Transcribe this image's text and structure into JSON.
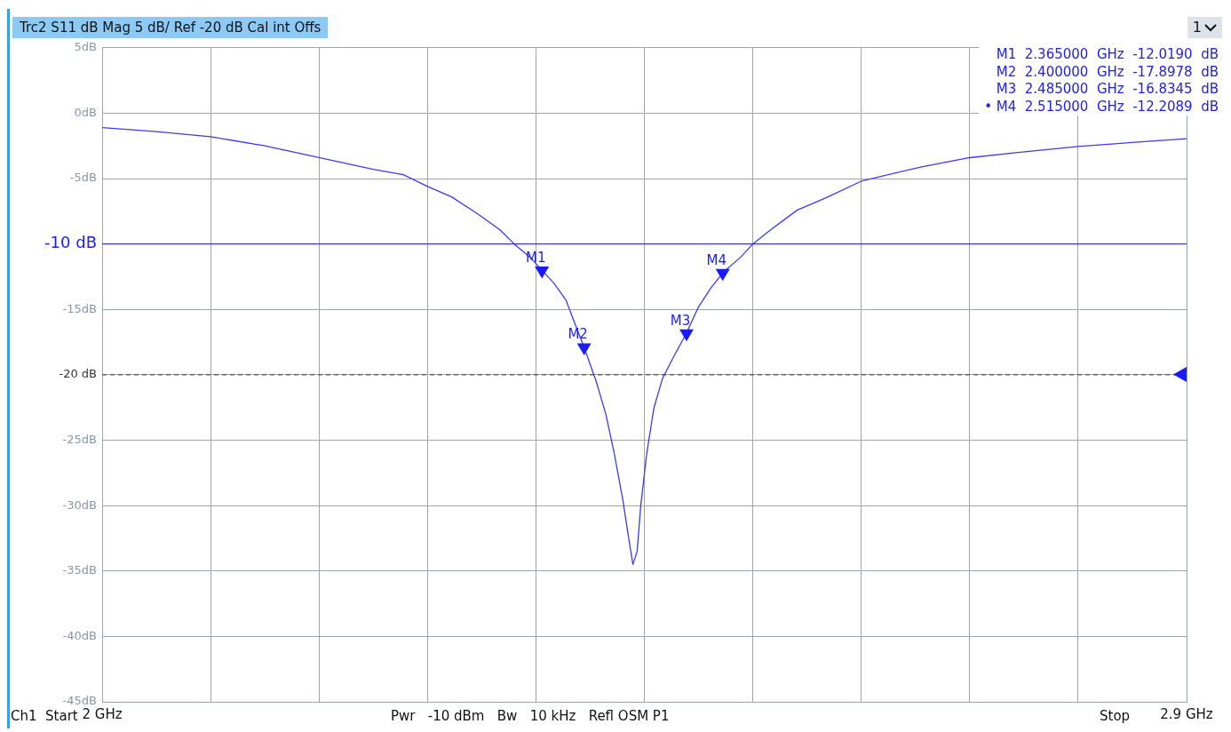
{
  "chart_data": {
    "type": "line",
    "title": "Trc2 S11 dB Mag 5 dB/ Ref -20 dB Cal int Offs",
    "x": [
      2.0,
      2.045,
      2.09,
      2.135,
      2.18,
      2.225,
      2.25,
      2.27,
      2.29,
      2.31,
      2.33,
      2.342,
      2.355,
      2.365,
      2.375,
      2.385,
      2.392,
      2.4,
      2.41,
      2.418,
      2.425,
      2.432,
      2.437,
      2.4405,
      2.444,
      2.447,
      2.452,
      2.458,
      2.465,
      2.475,
      2.485,
      2.495,
      2.505,
      2.515,
      2.53,
      2.54,
      2.555,
      2.577,
      2.6,
      2.63,
      2.68,
      2.72,
      2.76,
      2.81,
      2.86,
      2.9
    ],
    "series": [
      {
        "color": "#3a3af5",
        "values": [
          -1.1,
          -1.4,
          -1.8,
          -2.5,
          -3.4,
          -4.3,
          -4.7,
          -5.6,
          -6.4,
          -7.6,
          -8.9,
          -10.0,
          -11.0,
          -12.0,
          -13.0,
          -14.3,
          -16.0,
          -17.9,
          -20.5,
          -23.0,
          -26.0,
          -29.5,
          -32.5,
          -34.5,
          -33.5,
          -30.0,
          -26.0,
          -22.5,
          -20.3,
          -18.5,
          -16.8,
          -14.8,
          -13.4,
          -12.2,
          -11.0,
          -10.0,
          -8.9,
          -7.4,
          -6.5,
          -5.2,
          -4.1,
          -3.4,
          -3.0,
          -2.55,
          -2.2,
          -1.95
        ]
      }
    ],
    "xlim": [
      2.0,
      2.9
    ],
    "xticks": [
      {
        "value": 2.0,
        "label": "2 GHz"
      },
      {
        "value": 2.09,
        "label": null
      },
      {
        "value": 2.18,
        "label": null
      },
      {
        "value": 2.27,
        "label": null
      },
      {
        "value": 2.36,
        "label": null
      },
      {
        "value": 2.45,
        "label": null
      },
      {
        "value": 2.54,
        "label": null
      },
      {
        "value": 2.63,
        "label": null
      },
      {
        "value": 2.72,
        "label": null
      },
      {
        "value": 2.81,
        "label": null
      },
      {
        "value": 2.9,
        "label": "2.9 GHz"
      }
    ],
    "ylim": [
      -45,
      5
    ],
    "yticks": [
      {
        "value": 5,
        "label": "5dB"
      },
      {
        "value": 0,
        "label": "0dB"
      },
      {
        "value": -5,
        "label": "-5dB"
      },
      {
        "value": -10,
        "label": null
      },
      {
        "value": -15,
        "label": "-15dB"
      },
      {
        "value": -20,
        "label": null
      },
      {
        "value": -25,
        "label": "-25dB"
      },
      {
        "value": -30,
        "label": "-30dB"
      },
      {
        "value": -35,
        "label": "-35dB"
      },
      {
        "value": -40,
        "label": "-40dB"
      },
      {
        "value": -45,
        "label": "-45dB"
      }
    ],
    "grid": true,
    "legend": false,
    "marker": "none",
    "line_style": "solid",
    "ref_lines": [
      {
        "axis": "y",
        "value": -10,
        "label": "-10 dB",
        "color": "#1a1aff",
        "line_style": "solid"
      },
      {
        "axis": "y",
        "value": -20,
        "label": "-20 dB",
        "color": "#333333",
        "line_style": "dashed"
      }
    ],
    "annotations": [
      {
        "text": "M1",
        "x": 2.365,
        "y": -12.019
      },
      {
        "text": "M2",
        "x": 2.4,
        "y": -17.8978
      },
      {
        "text": "M3",
        "x": 2.485,
        "y": -16.8345
      },
      {
        "text": "M4",
        "x": 2.515,
        "y": -12.2089
      },
      "M1  2.365000  GHz  -12.0190  dB",
      "M2  2.400000  GHz  -17.8978  dB",
      "M3  2.485000  GHz  -16.8345  dB",
      "• M4  2.515000  GHz  -12.2089  dB",
      "1",
      "Ch1  Start",
      "Pwr   -10 dBm   Bw   10 kHz   Refl OSM P1",
      "Stop"
    ]
  }
}
